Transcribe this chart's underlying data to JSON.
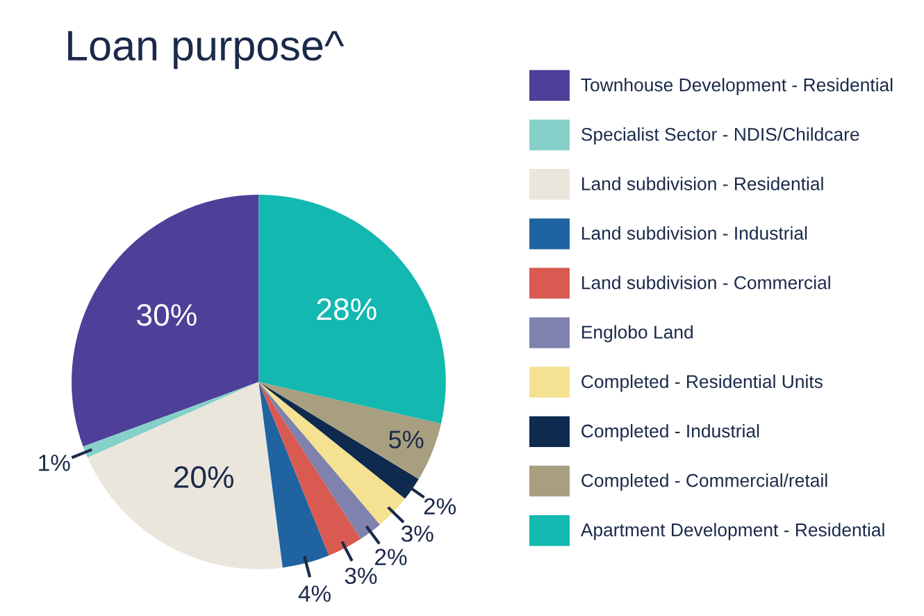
{
  "chart_data": {
    "type": "pie",
    "title": "Loan purpose^",
    "categories": [
      "Townhouse Development - Residential",
      "Specialist Sector - NDIS/Childcare",
      "Land subdivision - Residential",
      "Land subdivision - Industrial",
      "Land subdivision - Commercial",
      "Englobo Land",
      "Completed - Residential Units",
      "Completed - Industrial",
      "Completed - Commercial/retail",
      "Apartment Development - Residential"
    ],
    "values": [
      30,
      1,
      20,
      4,
      3,
      2,
      3,
      2,
      5,
      28
    ],
    "colors": [
      "#4e3f98",
      "#85d0c9",
      "#ebe6dc",
      "#1f63a0",
      "#d95a50",
      "#7f82ac",
      "#f4e292",
      "#0e2a4e",
      "#a89e80",
      "#13b8b0"
    ],
    "value_labels": [
      "30%",
      "1%",
      "20%",
      "4%",
      "3%",
      "2%",
      "3%",
      "2%",
      "5%",
      "28%"
    ],
    "legend": "right"
  }
}
